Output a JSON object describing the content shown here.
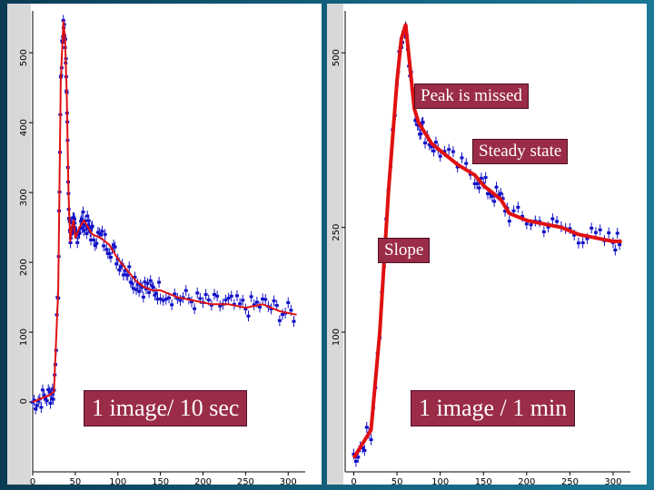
{
  "annotations": {
    "left_caption": "1 image/ 10 sec",
    "right_caption": "1 image / 1 min",
    "peak_missed": "Peak is missed",
    "steady_state": "Steady state",
    "slope": "Slope"
  },
  "colors": {
    "scan_dots": "#1010c8",
    "fit_line": "#e01010",
    "label_fill": "#9a2c48",
    "background": "#0f4f6b"
  },
  "chart_data": [
    {
      "type": "line",
      "title": "1 image/ 10 sec",
      "xlim": [
        0,
        320
      ],
      "ylim": [
        -100,
        560
      ],
      "x_ticks": [
        0,
        50,
        100,
        150,
        200,
        250,
        300
      ],
      "y_ticks": [
        0,
        100,
        200,
        300,
        400,
        500
      ],
      "grid": false,
      "series": [
        {
          "x": [
            0,
            10,
            20,
            25,
            30,
            33,
            36,
            38,
            40,
            42,
            44,
            46,
            48,
            50,
            55,
            60,
            65,
            70,
            80,
            90,
            100,
            110,
            120,
            130,
            140,
            150,
            170,
            190,
            210,
            230,
            250,
            270,
            290,
            310
          ],
          "y": [
            0,
            5,
            10,
            15,
            160,
            460,
            545,
            520,
            440,
            300,
            230,
            250,
            260,
            235,
            250,
            260,
            250,
            240,
            235,
            225,
            205,
            190,
            175,
            165,
            160,
            160,
            150,
            145,
            140,
            140,
            135,
            140,
            130,
            125
          ]
        }
      ]
    },
    {
      "type": "line",
      "title": "1 image / 1 min",
      "xlim": [
        -10,
        320
      ],
      "ylim": [
        -100,
        560
      ],
      "x_ticks": [
        0,
        50,
        100,
        150,
        200,
        250,
        300
      ],
      "y_ticks": [
        100,
        250,
        500
      ],
      "grid": false,
      "series": [
        {
          "x": [
            0,
            10,
            20,
            30,
            40,
            50,
            55,
            60,
            65,
            70,
            75,
            80,
            90,
            100,
            120,
            140,
            150,
            160,
            170,
            180,
            200,
            220,
            240,
            260,
            280,
            300,
            310
          ],
          "y": [
            -80,
            -60,
            -40,
            100,
            300,
            460,
            520,
            540,
            480,
            420,
            400,
            390,
            370,
            360,
            340,
            325,
            310,
            300,
            290,
            270,
            260,
            255,
            250,
            240,
            235,
            230,
            230
          ]
        }
      ]
    }
  ]
}
